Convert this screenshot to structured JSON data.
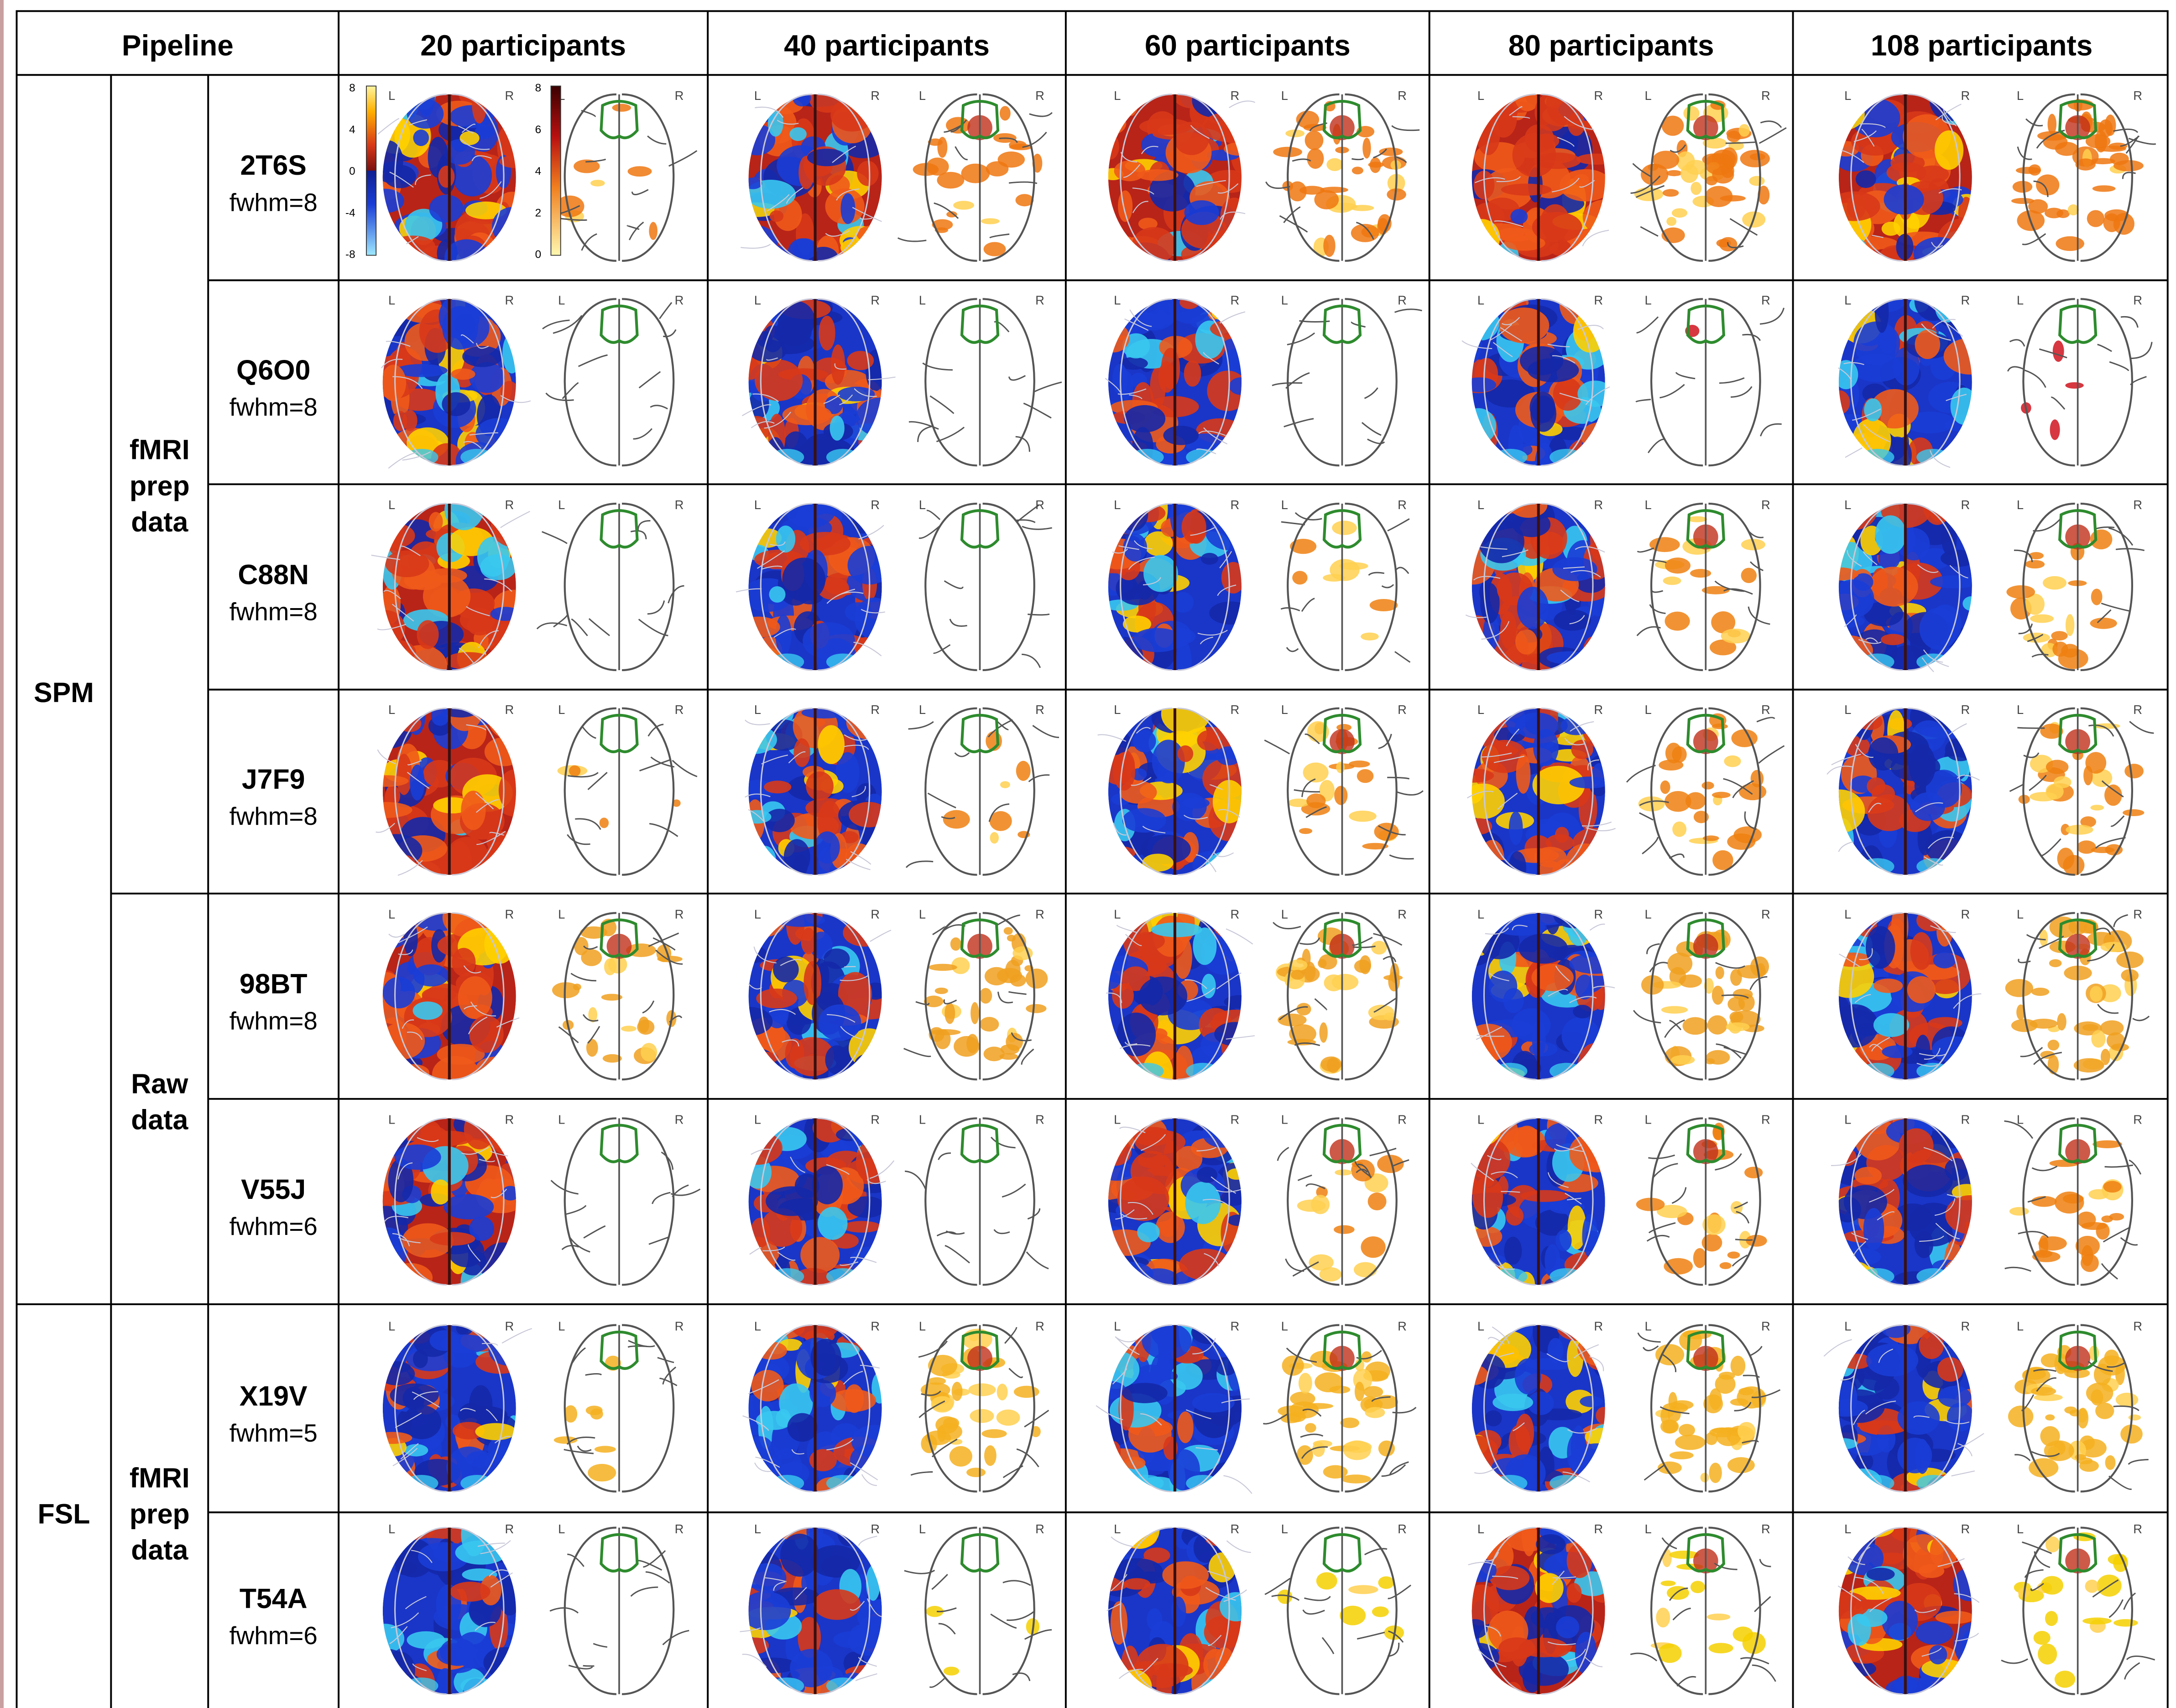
{
  "header": {
    "pipeline": "Pipeline",
    "columns": [
      "20 participants",
      "40 participants",
      "60 participants",
      "80 participants",
      "108 participants"
    ]
  },
  "software": [
    "SPM",
    "FSL"
  ],
  "data_sources": [
    "fMRI prep data",
    "Raw data",
    "fMRI prep data"
  ],
  "rows": [
    {
      "name": "2T6S",
      "fwhm": "fwhm=8",
      "software": "SPM",
      "source": "fMRI prep data",
      "warm": [
        0.62,
        0.55,
        0.72,
        0.8,
        0.7
      ],
      "thr": [
        0.1,
        0.3,
        0.5,
        0.6,
        0.55
      ],
      "thr_color": "#ee7711"
    },
    {
      "name": "Q6O0",
      "fwhm": "fwhm=8",
      "software": "SPM",
      "source": "fMRI prep data",
      "warm": [
        0.45,
        0.4,
        0.4,
        0.4,
        0.35
      ],
      "thr": [
        0,
        0,
        0,
        0.02,
        0.06
      ],
      "thr_color": "#d0141e"
    },
    {
      "name": "C88N",
      "fwhm": "fwhm=8",
      "software": "SPM",
      "source": "fMRI prep data",
      "warm": [
        0.62,
        0.45,
        0.5,
        0.5,
        0.45
      ],
      "thr": [
        0,
        0,
        0.12,
        0.22,
        0.28
      ],
      "thr_color": "#ee8011"
    },
    {
      "name": "J7F9",
      "fwhm": "fwhm=8",
      "software": "SPM",
      "source": "fMRI prep data",
      "warm": [
        0.68,
        0.5,
        0.5,
        0.5,
        0.45
      ],
      "thr": [
        0.06,
        0.1,
        0.28,
        0.34,
        0.38
      ],
      "thr_color": "#ee8011"
    },
    {
      "name": "98BT",
      "fwhm": "fwhm=8",
      "software": "SPM",
      "source": "Raw data",
      "warm": [
        0.58,
        0.5,
        0.45,
        0.45,
        0.45
      ],
      "thr": [
        0.32,
        0.45,
        0.45,
        0.48,
        0.55
      ],
      "thr_color": "#f0a020"
    },
    {
      "name": "V55J",
      "fwhm": "fwhm=6",
      "software": "SPM",
      "source": "Raw data",
      "warm": [
        0.58,
        0.45,
        0.5,
        0.45,
        0.45
      ],
      "thr": [
        0,
        0,
        0.2,
        0.26,
        0.3
      ],
      "thr_color": "#ee8011"
    },
    {
      "name": "X19V",
      "fwhm": "fwhm=5",
      "software": "FSL",
      "source": "fMRI prep data",
      "warm": [
        0.22,
        0.25,
        0.28,
        0.3,
        0.38
      ],
      "thr": [
        0.1,
        0.45,
        0.5,
        0.55,
        0.6
      ],
      "thr_color": "#f5b020"
    },
    {
      "name": "T54A",
      "fwhm": "fwhm=6",
      "software": "FSL",
      "source": "fMRI prep data",
      "warm": [
        0.22,
        0.4,
        0.5,
        0.55,
        0.55
      ],
      "thr": [
        0,
        0.04,
        0.1,
        0.18,
        0.26
      ],
      "thr_color": "#f5d000"
    }
  ],
  "hemisphere_labels": {
    "left": "L",
    "right": "R"
  },
  "colorbar_unthresholded": {
    "ticks": [
      "8",
      "4",
      "0",
      "-4",
      "-8"
    ]
  },
  "colorbar_thresholded": {
    "ticks": [
      "8",
      "6",
      "4",
      "2",
      "0"
    ]
  },
  "colors": {
    "positive": "#d83818",
    "positive_hot": "#ffd000",
    "negative": "#1a3dd6",
    "negative_cold": "#38c8f0",
    "roi_outline": "#2e8b2e",
    "grid": "#000000"
  }
}
